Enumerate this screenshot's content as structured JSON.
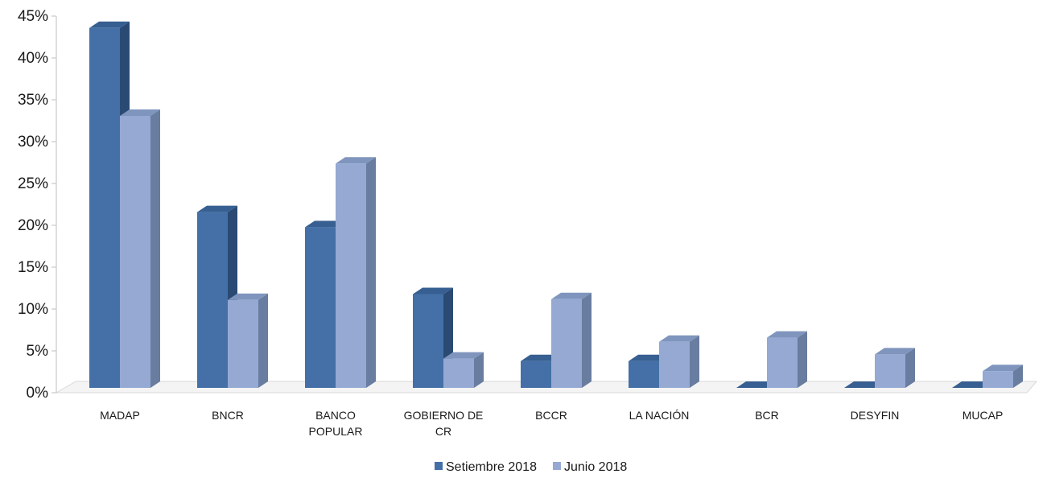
{
  "chart_data": {
    "type": "bar",
    "title": "",
    "xlabel": "",
    "ylabel": "",
    "ylim": [
      0,
      45
    ],
    "y_ticks": [
      "0%",
      "5%",
      "10%",
      "15%",
      "20%",
      "25%",
      "30%",
      "35%",
      "40%",
      "45%"
    ],
    "y_tick_values": [
      0,
      5,
      10,
      15,
      20,
      25,
      30,
      35,
      40,
      45
    ],
    "y_unit": "%",
    "categories": [
      [
        "MADAP"
      ],
      [
        "BNCR"
      ],
      [
        "BANCO",
        "POPULAR"
      ],
      [
        "GOBIERNO DE",
        "CR"
      ],
      [
        "BCCR"
      ],
      [
        "LA NACIÓN"
      ],
      [
        "BCR"
      ],
      [
        "DESYFIN"
      ],
      [
        "MUCAP"
      ]
    ],
    "series": [
      {
        "name": "Setiembre 2018",
        "values": [
          43.0,
          21.0,
          19.2,
          11.2,
          3.2,
          3.2,
          0.0,
          0.0,
          0.0
        ]
      },
      {
        "name": "Junio 2018",
        "values": [
          32.5,
          10.5,
          26.8,
          3.5,
          10.6,
          5.5,
          6.0,
          4.0,
          2.0
        ]
      }
    ],
    "legend_position": "bottom",
    "style": "3d-clustered-column",
    "grid": false,
    "colors": {
      "series": [
        {
          "front": "#4470a7",
          "side": "#2a4a74",
          "top": "#375f91"
        },
        {
          "front": "#95a9d3",
          "side": "#687d9f",
          "top": "#7f95bd"
        }
      ],
      "axis": "#bfbfbf",
      "floor": "#d9d9d9"
    }
  }
}
